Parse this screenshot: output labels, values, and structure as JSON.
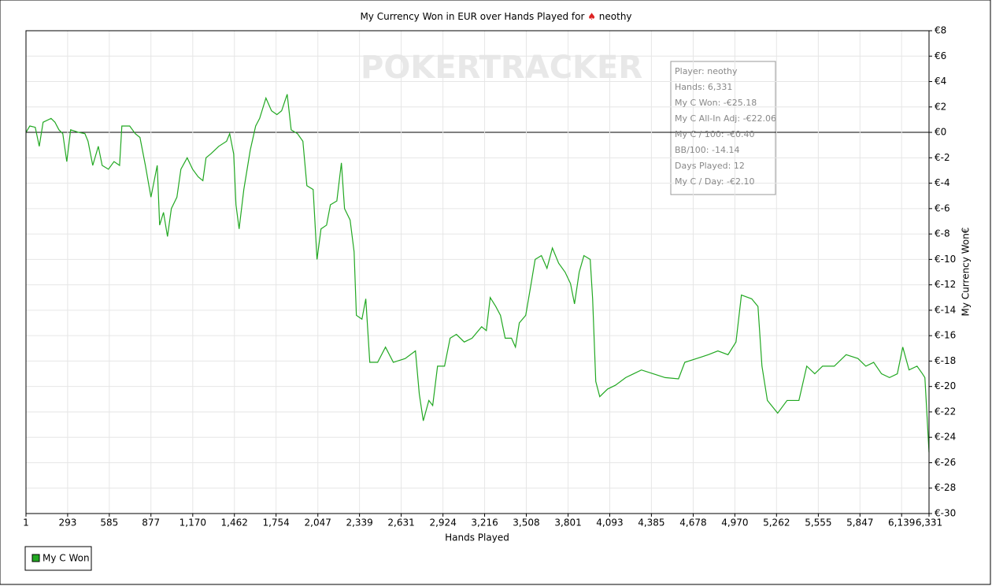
{
  "chart_data": {
    "type": "line",
    "title": "My Currency Won in EUR over Hands Played for",
    "player": "neothy",
    "watermark": "POKERTRACKER",
    "x_label": "Hands Played",
    "y_label": "My Currency Won€",
    "xlim": [
      1,
      6331
    ],
    "xticks": [
      1,
      293,
      585,
      877,
      {
        "value": 1170,
        "label": "1,170"
      },
      {
        "value": 1462,
        "label": "1,462"
      },
      {
        "value": 1754,
        "label": "1,754"
      },
      {
        "value": 2047,
        "label": "2,047"
      },
      {
        "value": 2339,
        "label": "2,339"
      },
      {
        "value": 2631,
        "label": "2,631"
      },
      {
        "value": 2924,
        "label": "2,924"
      },
      {
        "value": 3216,
        "label": "3,216"
      },
      {
        "value": 3508,
        "label": "3,508"
      },
      {
        "value": 3801,
        "label": "3,801"
      },
      {
        "value": 4093,
        "label": "4,093"
      },
      {
        "value": 4385,
        "label": "4,385"
      },
      {
        "value": 4678,
        "label": "4,678"
      },
      {
        "value": 4970,
        "label": "4,970"
      },
      {
        "value": 5262,
        "label": "5,262"
      },
      {
        "value": 5555,
        "label": "5,555"
      },
      {
        "value": 5847,
        "label": "5,847"
      },
      {
        "value": 6139,
        "label": "6,139"
      },
      {
        "value": 6331,
        "label": "6,331"
      }
    ],
    "ylim": [
      -30,
      8
    ],
    "yticks": [
      {
        "value": 8,
        "label": "€8"
      },
      {
        "value": 6,
        "label": "€6"
      },
      {
        "value": 4,
        "label": "€4"
      },
      {
        "value": 2,
        "label": "€2"
      },
      {
        "value": 0,
        "label": "€0"
      },
      {
        "value": -2,
        "label": "€-2"
      },
      {
        "value": -4,
        "label": "€-4"
      },
      {
        "value": -6,
        "label": "€-6"
      },
      {
        "value": -8,
        "label": "€-8"
      },
      {
        "value": -10,
        "label": "€-10"
      },
      {
        "value": -12,
        "label": "€-12"
      },
      {
        "value": -14,
        "label": "€-14"
      },
      {
        "value": -16,
        "label": "€-16"
      },
      {
        "value": -18,
        "label": "€-18"
      },
      {
        "value": -20,
        "label": "€-20"
      },
      {
        "value": -22,
        "label": "€-22"
      },
      {
        "value": -24,
        "label": "€-24"
      },
      {
        "value": -26,
        "label": "€-26"
      },
      {
        "value": -28,
        "label": "€-28"
      },
      {
        "value": -30,
        "label": "€-30"
      }
    ],
    "grid": true,
    "legend": "bottom-left",
    "annotations": [
      "Player: neothy",
      "Hands: 6,331",
      "My C Won: -€25.18",
      "My C All-In Adj: -€22.06",
      "My C / 100: -€0.40",
      "BB/100: -14.14",
      "Days Played: 12",
      "My C / Day: -€2.10"
    ],
    "x": [
      1,
      28,
      66,
      94,
      121,
      177,
      204,
      232,
      259,
      287,
      314,
      370,
      414,
      436,
      469,
      508,
      535,
      579,
      618,
      657,
      673,
      728,
      767,
      800,
      838,
      877,
      921,
      938,
      965,
      993,
      1020,
      1059,
      1087,
      1131,
      1169,
      1208,
      1241,
      1263,
      1296,
      1352,
      1407,
      1429,
      1457,
      1473,
      1495,
      1528,
      1573,
      1611,
      1639,
      1683,
      1722,
      1760,
      1793,
      1832,
      1860,
      1904,
      1942,
      1970,
      2014,
      2041,
      2069,
      2108,
      2135,
      2180,
      2212,
      2234,
      2273,
      2301,
      2317,
      2356,
      2383,
      2411,
      2466,
      2521,
      2576,
      2659,
      2731,
      2758,
      2786,
      2825,
      2852,
      2886,
      2935,
      2974,
      3018,
      3073,
      3128,
      3195,
      3228,
      3255,
      3294,
      3327,
      3360,
      3404,
      3432,
      3459,
      3504,
      3542,
      3570,
      3614,
      3653,
      3691,
      3735,
      3780,
      3818,
      3846,
      3879,
      3912,
      3956,
      3973,
      3995,
      4023,
      4078,
      4133,
      4205,
      4260,
      4315,
      4398,
      4481,
      4575,
      4619,
      4702,
      4784,
      4851,
      4922,
      4978,
      5016,
      5088,
      5132,
      5160,
      5198,
      5270,
      5336,
      5419,
      5474,
      5530,
      5585,
      5667,
      5750,
      5833,
      5888,
      5943,
      5998,
      6054,
      6109,
      6147,
      6191,
      6247,
      6285,
      6302,
      6313,
      6331
    ],
    "series": [
      {
        "name": "My C Won",
        "color": "#22a822",
        "values": [
          0,
          0.5,
          0.4,
          -1.1,
          0.8,
          1.1,
          0.8,
          0.2,
          -0.1,
          -2.3,
          0.2,
          0,
          -0.1,
          -0.7,
          -2.6,
          -1.1,
          -2.6,
          -2.9,
          -2.3,
          -2.6,
          0.5,
          0.5,
          -0.1,
          -0.4,
          -2.6,
          -5.1,
          -2.6,
          -7.3,
          -6.3,
          -8.2,
          -6.0,
          -5.1,
          -2.9,
          -2.0,
          -2.9,
          -3.5,
          -3.8,
          -2.0,
          -1.7,
          -1.1,
          -0.7,
          -0.1,
          -1.7,
          -5.7,
          -7.6,
          -4.5,
          -1.4,
          0.5,
          1.1,
          2.7,
          1.7,
          1.4,
          1.7,
          3.0,
          0.2,
          -0.1,
          -0.7,
          -4.2,
          -4.5,
          -10.0,
          -7.6,
          -7.3,
          -5.7,
          -5.4,
          -2.4,
          -6.0,
          -6.9,
          -9.4,
          -14.4,
          -14.7,
          -13.1,
          -18.1,
          -18.1,
          -16.9,
          -18.1,
          -17.8,
          -17.2,
          -20.6,
          -22.7,
          -21.1,
          -21.5,
          -18.4,
          -18.4,
          -16.2,
          -15.9,
          -16.5,
          -16.2,
          -15.3,
          -15.6,
          -13.0,
          -13.7,
          -14.4,
          -16.2,
          -16.2,
          -16.9,
          -15.0,
          -14.4,
          -11.9,
          -10.0,
          -9.7,
          -10.7,
          -9.1,
          -10.3,
          -11.0,
          -11.9,
          -13.5,
          -11.0,
          -9.7,
          -10.0,
          -13.1,
          -19.6,
          -20.8,
          -20.2,
          -19.9,
          -19.3,
          -19.0,
          -18.7,
          -19.0,
          -19.3,
          -19.4,
          -18.1,
          -17.8,
          -17.5,
          -17.2,
          -17.5,
          -16.5,
          -12.8,
          -13.1,
          -13.7,
          -18.4,
          -21.1,
          -22.1,
          -21.1,
          -21.1,
          -18.4,
          -19.0,
          -18.4,
          -18.4,
          -17.5,
          -17.8,
          -18.4,
          -18.1,
          -19.0,
          -19.3,
          -19.0,
          -16.9,
          -18.7,
          -18.4,
          -19.0,
          -19.3,
          -21.5,
          -25.18
        ]
      }
    ]
  }
}
